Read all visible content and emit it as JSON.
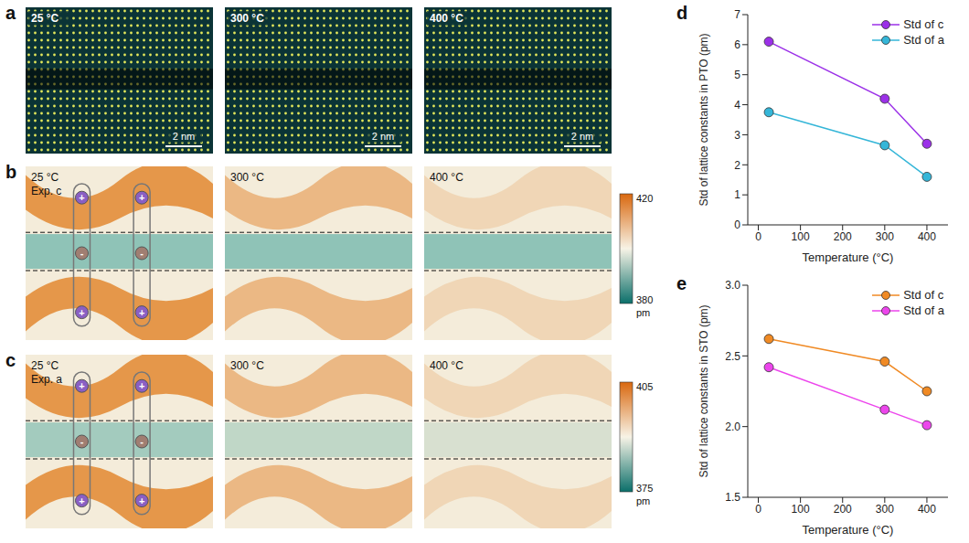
{
  "image_panels": [
    {
      "label": "a",
      "frames": [
        "25 °C",
        "300 °C",
        "400 °C"
      ],
      "scale_bar": "2 nm"
    },
    {
      "label": "b",
      "frames": [
        "25 °C",
        "300 °C",
        "400 °C"
      ],
      "annotation": "Exp. c",
      "symbols": [
        "+",
        "-",
        "+"
      ],
      "colorbar": {
        "range": [
          380,
          420
        ],
        "ticks": [
          380,
          420
        ],
        "unit": "pm"
      }
    },
    {
      "label": "c",
      "frames": [
        "25 °C",
        "300 °C",
        "400 °C"
      ],
      "annotation": "Exp. a",
      "symbols": [
        "+",
        "-",
        "+"
      ],
      "colorbar": {
        "range": [
          375,
          405
        ],
        "ticks": [
          375,
          405
        ],
        "unit": "pm"
      }
    }
  ],
  "chart_data": [
    {
      "label": "d",
      "type": "line",
      "x_label": "Temperature (°C)",
      "y_label": "Std of lattice constants in PTO (pm)",
      "x": [
        25,
        300,
        400
      ],
      "xlim": [
        -25,
        450
      ],
      "xticks": [
        0,
        100,
        200,
        300,
        400
      ],
      "ylim": [
        0,
        7
      ],
      "yticks": [
        0,
        1,
        2,
        3,
        4,
        5,
        6,
        7
      ],
      "grid": false,
      "legend": "top-right",
      "marker": "circle",
      "series": [
        {
          "name": "Std of c",
          "color": "#9b30e8",
          "values": [
            6.1,
            4.2,
            2.7
          ]
        },
        {
          "name": "Std of a",
          "color": "#35b6d8",
          "values": [
            3.75,
            2.65,
            1.6
          ]
        }
      ]
    },
    {
      "label": "e",
      "type": "line",
      "x_label": "Temperature (°C)",
      "y_label": "Std of lattice constants in STO (pm)",
      "x": [
        25,
        300,
        400
      ],
      "xlim": [
        -25,
        450
      ],
      "xticks": [
        0,
        100,
        200,
        300,
        400
      ],
      "ylim": [
        1.5,
        3
      ],
      "yticks": [
        1.5,
        {
          "value": 2,
          "label": "2.0"
        },
        2.5,
        {
          "value": 3,
          "label": "3.0"
        }
      ],
      "grid": false,
      "legend": "top-right",
      "marker": "circle",
      "series": [
        {
          "name": "Std of c",
          "color": "#f08a24",
          "values": [
            2.62,
            2.46,
            2.25
          ]
        },
        {
          "name": "Std of a",
          "color": "#ec45ec",
          "values": [
            2.42,
            2.12,
            2.01
          ]
        }
      ]
    }
  ]
}
